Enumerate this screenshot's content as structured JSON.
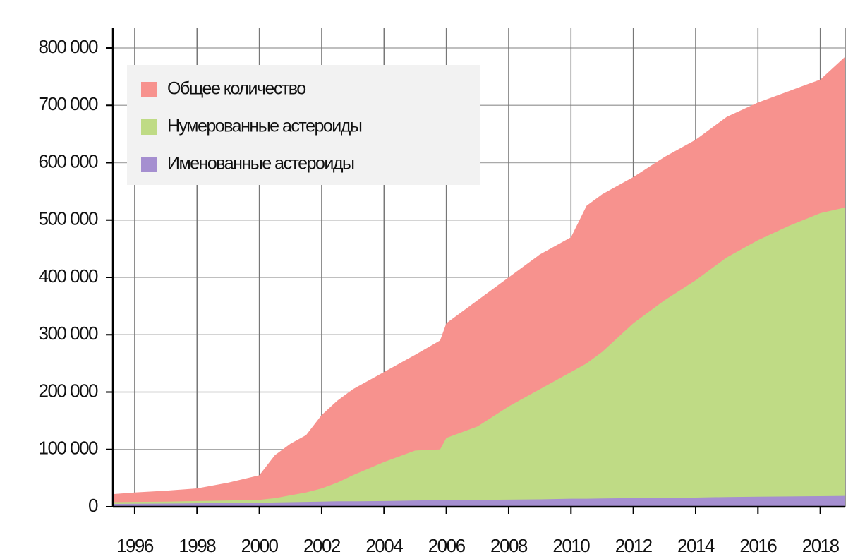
{
  "chart_data": {
    "type": "area",
    "x": [
      1995.3,
      1996,
      1997,
      1998,
      1999,
      2000,
      2000.5,
      2001,
      2001.5,
      2002,
      2002.5,
      2003,
      2004,
      2005,
      2005.8,
      2006,
      2007,
      2008,
      2009,
      2010,
      2010.5,
      2011,
      2012,
      2013,
      2014,
      2015,
      2016,
      2017,
      2018,
      2018.8
    ],
    "series": [
      {
        "name": "Общее количество",
        "color": "#f7928e",
        "values": [
          22000,
          25000,
          28000,
          32000,
          42000,
          55000,
          90000,
          110000,
          125000,
          160000,
          185000,
          205000,
          235000,
          265000,
          290000,
          320000,
          360000,
          400000,
          440000,
          470000,
          525000,
          545000,
          575000,
          610000,
          640000,
          680000,
          705000,
          725000,
          745000,
          785000
        ]
      },
      {
        "name": "Нумерованные астероиды",
        "color": "#bfdb85",
        "values": [
          8000,
          8500,
          9000,
          10000,
          11000,
          12000,
          15000,
          20000,
          25000,
          32000,
          42000,
          55000,
          78000,
          98000,
          100000,
          120000,
          140000,
          175000,
          205000,
          235000,
          250000,
          270000,
          320000,
          360000,
          395000,
          435000,
          465000,
          490000,
          512000,
          522000
        ]
      },
      {
        "name": "Именованные астероиды",
        "color": "#a58fd0",
        "values": [
          5000,
          5200,
          5500,
          6000,
          6500,
          7000,
          7500,
          8000,
          8500,
          9000,
          9500,
          9500,
          10000,
          11000,
          11500,
          11500,
          12000,
          12500,
          13000,
          14000,
          14000,
          14500,
          15000,
          15500,
          16000,
          17000,
          17500,
          18000,
          18500,
          19000
        ]
      }
    ],
    "xlim": [
      1995.3,
      2018.8
    ],
    "xticks": [
      1996,
      1998,
      2000,
      2002,
      2004,
      2006,
      2008,
      2010,
      2012,
      2014,
      2016,
      2018
    ],
    "ylim": [
      0,
      800000
    ],
    "yticks": [
      0,
      {
        "value": 100000,
        "label": "100 000"
      },
      {
        "value": 200000,
        "label": "200 000"
      },
      {
        "value": 300000,
        "label": "300 000"
      },
      {
        "value": 400000,
        "label": "400 000"
      },
      {
        "value": 500000,
        "label": "500 000"
      },
      {
        "value": 600000,
        "label": "600 000"
      },
      {
        "value": 700000,
        "label": "700 000"
      },
      {
        "value": 800000,
        "label": "800 000"
      }
    ],
    "grid": true,
    "legend": "upper left"
  }
}
